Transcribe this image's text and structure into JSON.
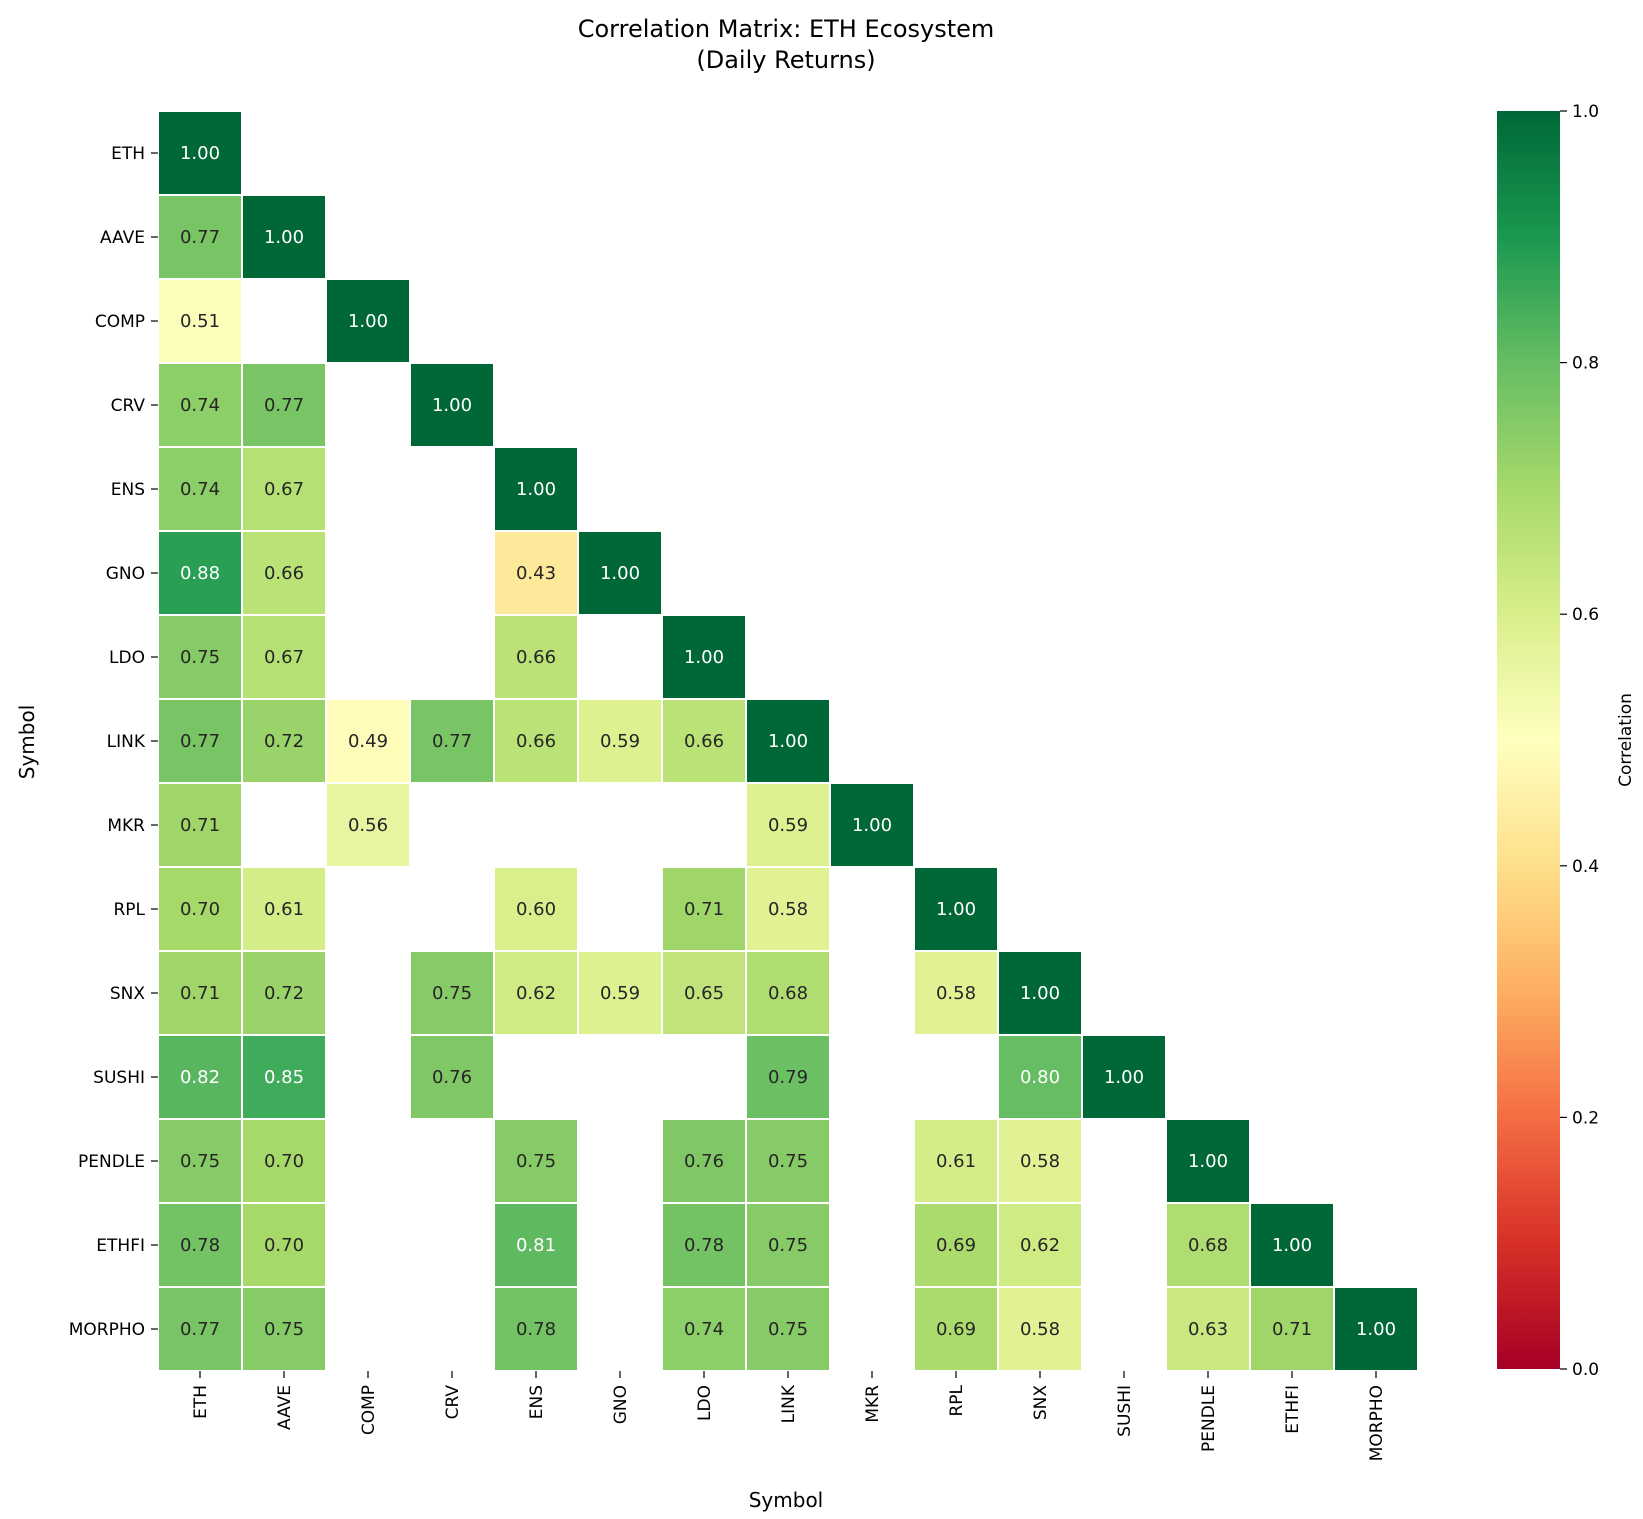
{
  "chart_data": {
    "type": "heatmap",
    "title_line1": "Correlation Matrix: ETH Ecosystem",
    "title_line2": "(Daily Returns)",
    "xlabel": "Symbol",
    "ylabel": "Symbol",
    "colorbar_label": "Correlation",
    "colormap": "RdYlGn",
    "vmin": 0.0,
    "vmax": 1.0,
    "colorbar_ticks": [
      "0.0",
      "0.2",
      "0.4",
      "0.6",
      "0.8",
      "1.0"
    ],
    "labels": [
      "ETH",
      "AAVE",
      "COMP",
      "CRV",
      "ENS",
      "GNO",
      "LDO",
      "LINK",
      "MKR",
      "RPL",
      "SNX",
      "SUSHI",
      "PENDLE",
      "ETHFI",
      "MORPHO"
    ],
    "matrix": [
      [
        1.0,
        null,
        null,
        null,
        null,
        null,
        null,
        null,
        null,
        null,
        null,
        null,
        null,
        null,
        null
      ],
      [
        0.77,
        1.0,
        null,
        null,
        null,
        null,
        null,
        null,
        null,
        null,
        null,
        null,
        null,
        null,
        null
      ],
      [
        0.51,
        null,
        1.0,
        null,
        null,
        null,
        null,
        null,
        null,
        null,
        null,
        null,
        null,
        null,
        null
      ],
      [
        0.74,
        0.77,
        null,
        1.0,
        null,
        null,
        null,
        null,
        null,
        null,
        null,
        null,
        null,
        null,
        null
      ],
      [
        0.74,
        0.67,
        null,
        null,
        1.0,
        null,
        null,
        null,
        null,
        null,
        null,
        null,
        null,
        null,
        null
      ],
      [
        0.88,
        0.66,
        null,
        null,
        0.43,
        1.0,
        null,
        null,
        null,
        null,
        null,
        null,
        null,
        null,
        null
      ],
      [
        0.75,
        0.67,
        null,
        null,
        0.66,
        null,
        1.0,
        null,
        null,
        null,
        null,
        null,
        null,
        null,
        null
      ],
      [
        0.77,
        0.72,
        0.49,
        0.77,
        0.66,
        0.59,
        0.66,
        1.0,
        null,
        null,
        null,
        null,
        null,
        null,
        null
      ],
      [
        0.71,
        null,
        0.56,
        null,
        null,
        null,
        null,
        0.59,
        1.0,
        null,
        null,
        null,
        null,
        null,
        null
      ],
      [
        0.7,
        0.61,
        null,
        null,
        0.6,
        null,
        0.71,
        0.58,
        null,
        1.0,
        null,
        null,
        null,
        null,
        null
      ],
      [
        0.71,
        0.72,
        null,
        0.75,
        0.62,
        0.59,
        0.65,
        0.68,
        null,
        0.58,
        1.0,
        null,
        null,
        null,
        null
      ],
      [
        0.82,
        0.85,
        null,
        0.76,
        null,
        null,
        null,
        0.79,
        null,
        null,
        0.8,
        1.0,
        null,
        null,
        null
      ],
      [
        0.75,
        0.7,
        null,
        null,
        0.75,
        null,
        0.76,
        0.75,
        null,
        0.61,
        0.58,
        null,
        1.0,
        null,
        null
      ],
      [
        0.78,
        0.7,
        null,
        null,
        0.81,
        null,
        0.78,
        0.75,
        null,
        0.69,
        0.62,
        null,
        0.68,
        1.0,
        null
      ],
      [
        0.77,
        0.75,
        null,
        null,
        0.78,
        null,
        0.74,
        0.75,
        null,
        0.69,
        0.58,
        null,
        0.63,
        0.71,
        1.0
      ]
    ]
  }
}
